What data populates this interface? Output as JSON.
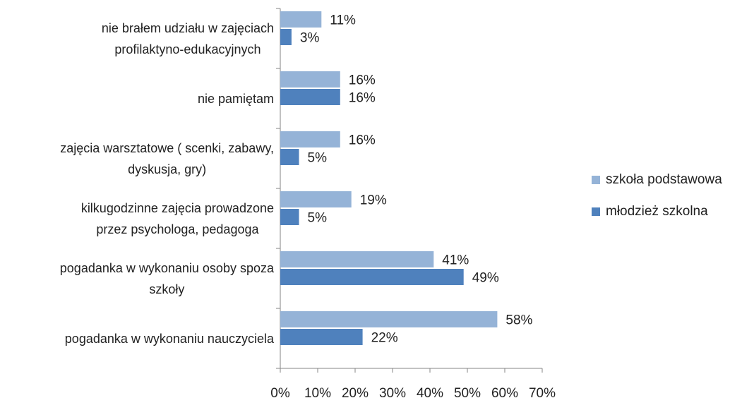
{
  "chart_data": {
    "type": "bar",
    "orientation": "horizontal",
    "categories": [
      "nie brałem udziału w zajęciach\nprofilaktyno-edukacyjnych",
      "nie pamiętam",
      "zajęcia warsztatowe ( scenki, zabawy,\ndyskusja, gry)",
      "kilkugodzinne zajęcia prowadzone\nprzez psychologa, pedagoga",
      "pogadanka w wykonaniu osoby spoza\nszkoły",
      "pogadanka w wykonaniu nauczyciela"
    ],
    "series": [
      {
        "name": "szkoła podstawowa",
        "color": "#95b3d7",
        "values": [
          11,
          16,
          16,
          19,
          41,
          58
        ],
        "value_labels": [
          "11%",
          "16%",
          "16%",
          "19%",
          "41%",
          "58%"
        ]
      },
      {
        "name": "młodzież szkolna",
        "color": "#4f81bd",
        "values": [
          3,
          16,
          5,
          5,
          49,
          22
        ],
        "value_labels": [
          "3%",
          "16%",
          "5%",
          "5%",
          "49%",
          "22%"
        ]
      }
    ],
    "xlim": [
      0,
      70
    ],
    "xticks": [
      {
        "value": 0,
        "label": "0%"
      },
      {
        "value": 10,
        "label": "10%"
      },
      {
        "value": 20,
        "label": "20%"
      },
      {
        "value": 30,
        "label": "30%"
      },
      {
        "value": 40,
        "label": "40%"
      },
      {
        "value": 50,
        "label": "50%"
      },
      {
        "value": 60,
        "label": "60%"
      },
      {
        "value": 70,
        "label": "70%"
      }
    ],
    "grid": false,
    "legend": "right"
  }
}
